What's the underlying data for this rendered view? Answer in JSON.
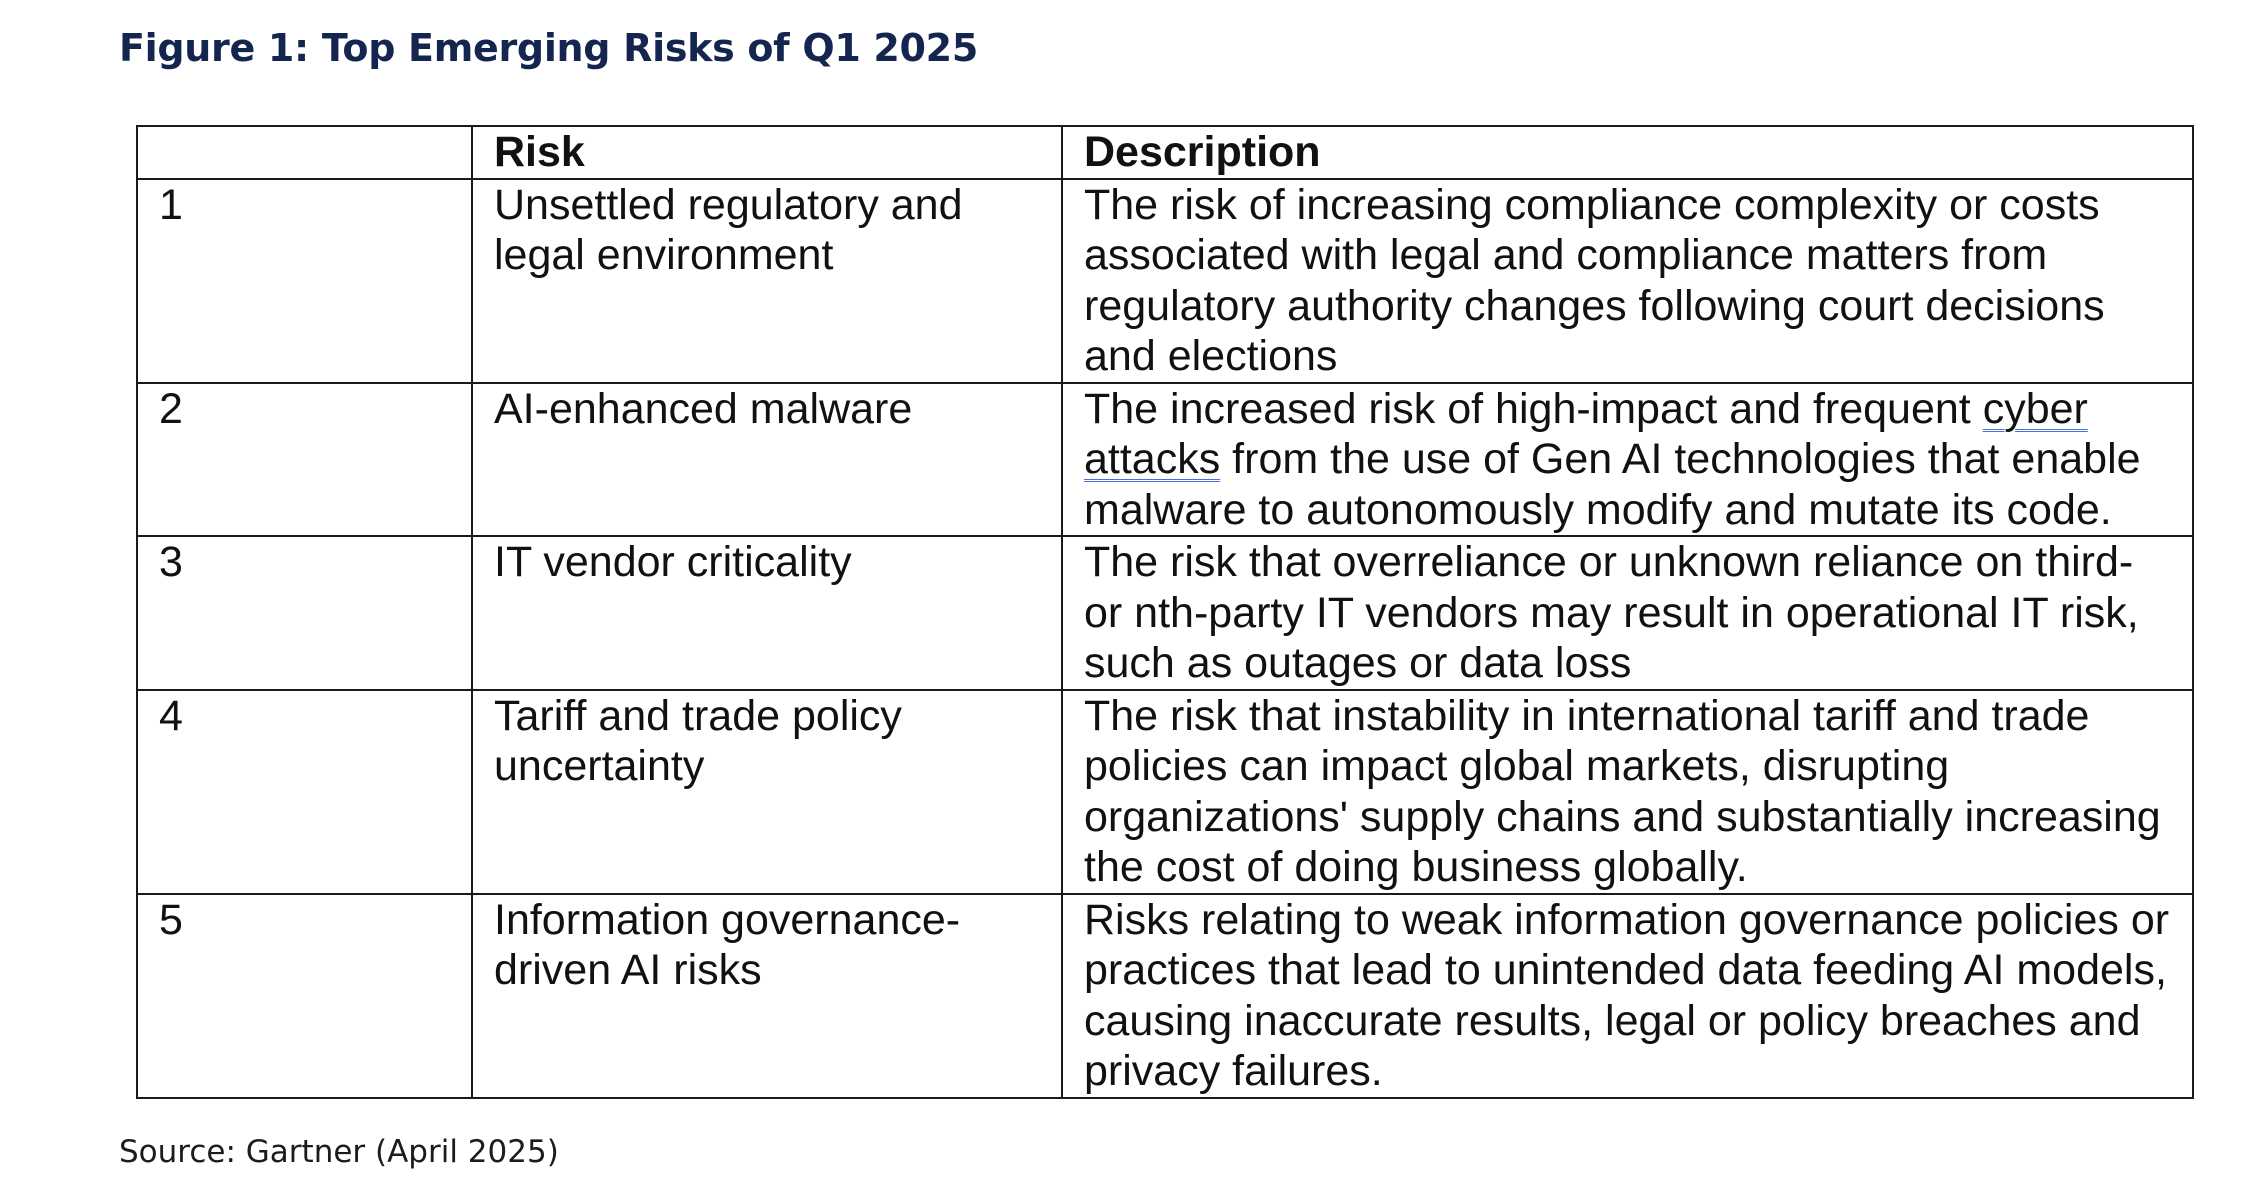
{
  "figure": {
    "title": "Figure 1: Top Emerging Risks of Q1 2025",
    "source": "Source: Gartner (April 2025)"
  },
  "table": {
    "headers": [
      "",
      "Risk",
      "Description"
    ],
    "rows": [
      {
        "num": "1",
        "risk": "Unsettled regulatory and legal environment",
        "description": "The risk of increasing compliance complexity or costs associated with legal and compliance matters from regulatory authority changes following court decisions and elections"
      },
      {
        "num": "2",
        "risk": "AI-enhanced malware",
        "description_parts": {
          "before": "The increased risk of high-impact and frequent ",
          "underlined": "cyber attacks",
          "after": " from the use of Gen AI technologies that enable malware to autonomously modify and mutate its code."
        }
      },
      {
        "num": "3",
        "risk": "IT vendor criticality",
        "description": "The risk that overreliance or unknown reliance on third- or nth-party IT vendors may result in operational IT risk, such as outages or data loss"
      },
      {
        "num": "4",
        "risk": "Tariff and trade policy uncertainty",
        "description": "The risk that instability in international tariff and trade policies can impact global markets, disrupting organizations' supply chains and substantially increasing the cost of doing business globally."
      },
      {
        "num": "5",
        "risk": "Information governance-driven AI risks",
        "description": "Risks relating to weak information governance policies or practices that lead to unintended data feeding AI models, causing inaccurate results, legal or policy breaches and privacy failures."
      }
    ]
  }
}
